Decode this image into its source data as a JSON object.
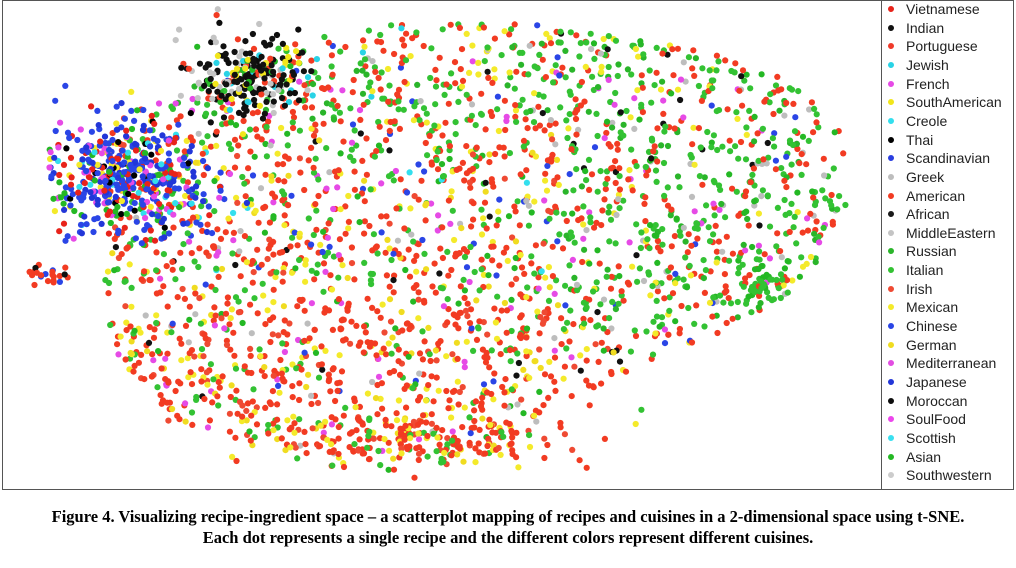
{
  "chart_data": {
    "type": "scatter",
    "title": "",
    "xlabel": "",
    "ylabel": "",
    "legend_position": "right",
    "grid": false,
    "axes_shown": false,
    "series": [
      {
        "name": "Vietnamese",
        "color": "#e8231a"
      },
      {
        "name": "Indian",
        "color": "#111111"
      },
      {
        "name": "Portuguese",
        "color": "#f03a2a"
      },
      {
        "name": "Jewish",
        "color": "#29d3e6"
      },
      {
        "name": "French",
        "color": "#e64ae6"
      },
      {
        "name": "SouthAmerican",
        "color": "#f2e61a"
      },
      {
        "name": "Creole",
        "color": "#33dfee"
      },
      {
        "name": "Thai",
        "color": "#000000"
      },
      {
        "name": "Scandinavian",
        "color": "#2a3ee0"
      },
      {
        "name": "Greek",
        "color": "#bdbdbd"
      },
      {
        "name": "American",
        "color": "#f23b22"
      },
      {
        "name": "African",
        "color": "#1a1a1a"
      },
      {
        "name": "MiddleEastern",
        "color": "#c4c4c4"
      },
      {
        "name": "Russian",
        "color": "#2ab52a"
      },
      {
        "name": "Italian",
        "color": "#33c233"
      },
      {
        "name": "Irish",
        "color": "#ef4a33"
      },
      {
        "name": "Mexican",
        "color": "#f4ea2a"
      },
      {
        "name": "Chinese",
        "color": "#2a45e6"
      },
      {
        "name": "German",
        "color": "#f0dc20"
      },
      {
        "name": "Mediterranean",
        "color": "#e24de2"
      },
      {
        "name": "Japanese",
        "color": "#2236d8"
      },
      {
        "name": "Moroccan",
        "color": "#0d0d0d"
      },
      {
        "name": "SoulFood",
        "color": "#ec46ec"
      },
      {
        "name": "Scottish",
        "color": "#3ae0f0"
      },
      {
        "name": "Asian",
        "color": "#24b824"
      },
      {
        "name": "Southwestern",
        "color": "#cccccc"
      }
    ]
  },
  "caption": {
    "line1": "Figure 4. Visualizing recipe-ingredient space – a scatterplot mapping of recipes and cuisines in a 2-dimensional space using t-SNE.",
    "line2": "Each dot represents a single recipe and the different colors represent different cuisines."
  }
}
